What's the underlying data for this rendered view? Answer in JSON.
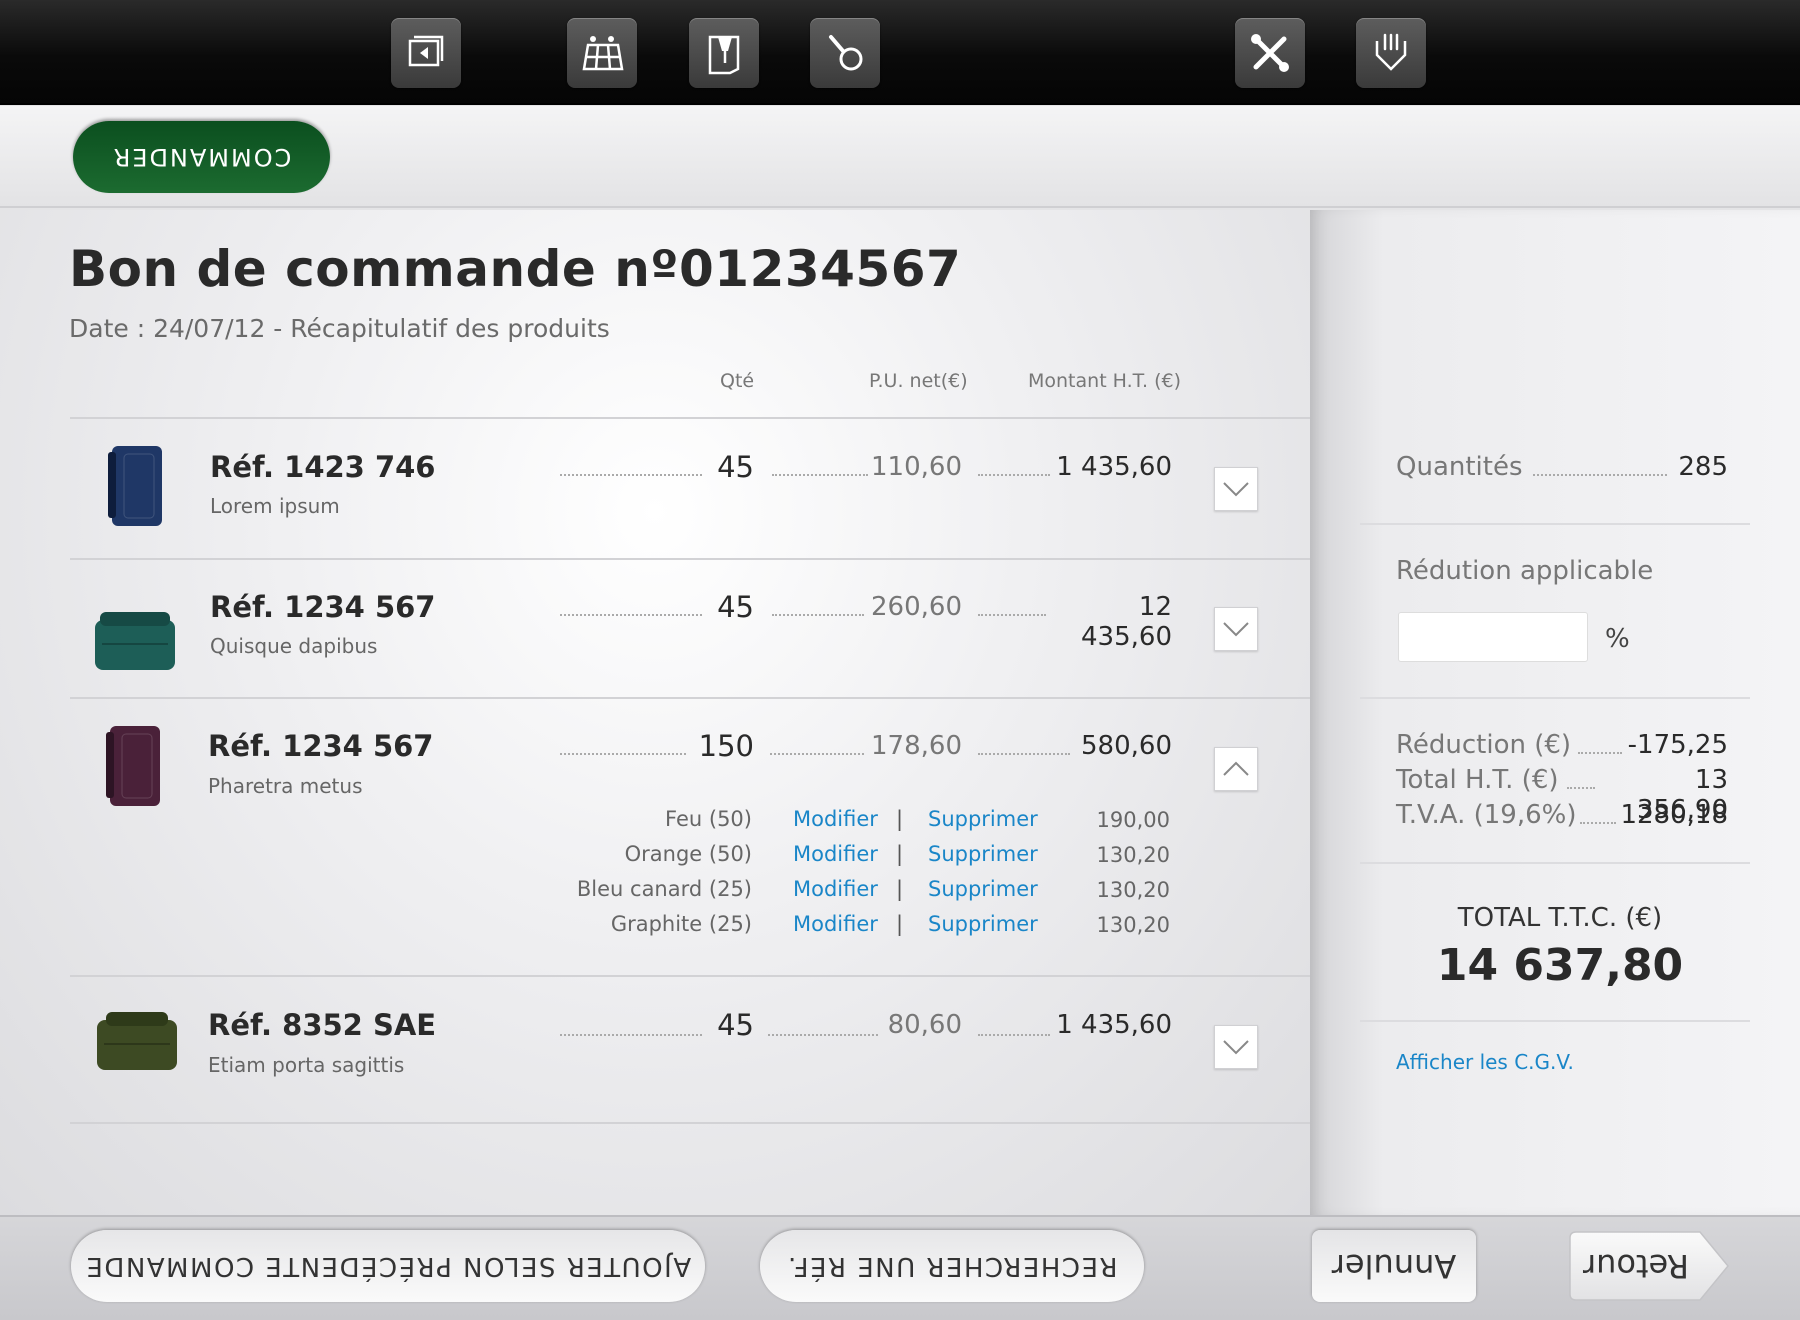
{
  "toolbar": {
    "icons": [
      "gallery-icon",
      "grid-icon",
      "pin-icon",
      "bag-icon",
      "tools-icon",
      "hand-icon"
    ]
  },
  "actions": {
    "commander_label": "COMMANDER"
  },
  "order": {
    "title": "Bon de commande nº01234567",
    "subtitle": "Date : 24/07/12 - Récapitulatif des produits",
    "columns": {
      "qty": "Qté",
      "pu": "P.U. net(€)",
      "montant": "Montant H.T. (€)"
    },
    "items": [
      {
        "ref": "Réf. 1423 746",
        "desc": "Lorem ipsum",
        "qty": "45",
        "pu": "110,60",
        "montant": "1 435,60",
        "color": "#1f3766"
      },
      {
        "ref": "Réf. 1234 567",
        "desc": "Quisque dapibus",
        "qty": "45",
        "pu": "260,60",
        "montant": "12 435,60",
        "color": "#1d5e57"
      },
      {
        "ref": "Réf. 1234 567",
        "desc": "Pharetra metus",
        "qty": "150",
        "pu": "178,60",
        "montant": "580,60",
        "color": "#4a2139"
      },
      {
        "ref": "Réf. 8352 SAE",
        "desc": "Etiam porta sagittis",
        "qty": "45",
        "pu": "80,60",
        "montant": "1 435,60",
        "color": "#3d4a23"
      }
    ],
    "variants": [
      {
        "name": "Feu (50)",
        "price": "190,00"
      },
      {
        "name": "Orange (50)",
        "price": "130,20"
      },
      {
        "name": "Bleu canard (25)",
        "price": "130,20"
      },
      {
        "name": "Graphite (25)",
        "price": "130,20"
      }
    ],
    "modify_label": "Modifier",
    "delete_label": "Supprimer",
    "pipe": "|"
  },
  "summary": {
    "quantites_label": "Quantités",
    "quantites_value": "285",
    "reduction_applicable_label": "Rédution applicable",
    "percent": "%",
    "reduction_label": "Réduction (€)",
    "reduction_value": "-175,25",
    "total_ht_label": "Total H.T. (€)",
    "total_ht_value": "13 356,90",
    "tva_label": "T.V.A. (19,6%)",
    "tva_value": "1280,18",
    "total_ttc_label": "TOTAL T.T.C. (€)",
    "total_ttc_value": "14 637,80",
    "cgv_link": "Afficher les C.G.V."
  },
  "bottom": {
    "add_previous_label": "AJOUTER SELON PRÉCÉDENTE COMMANDE",
    "search_ref_label": "RECHERCHER UNE RÉF.",
    "annuler_label": "Annuler",
    "retour_label": "Retour"
  }
}
